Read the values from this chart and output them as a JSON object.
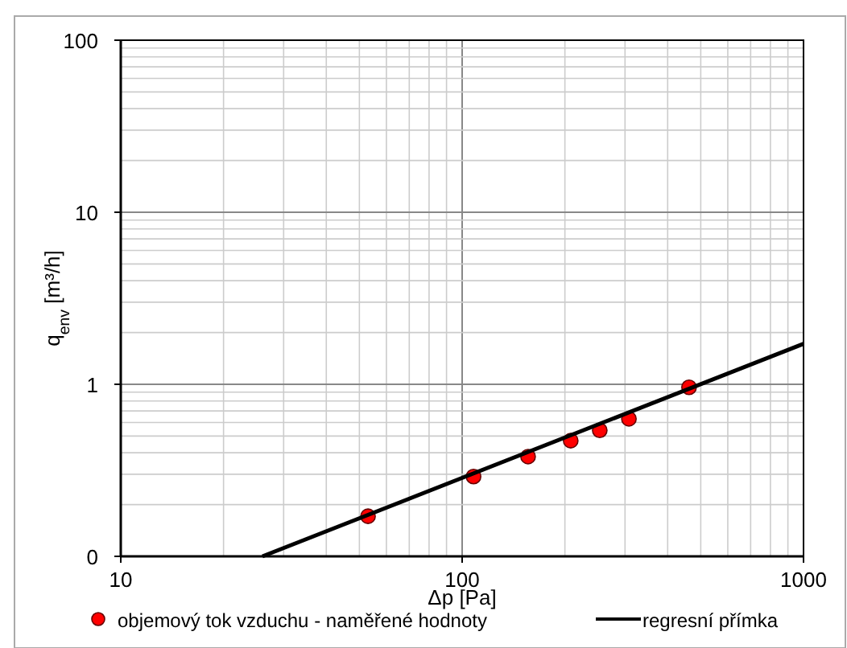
{
  "chart_data": {
    "type": "scatter",
    "xlabel": "Δp [Pa]",
    "ylabel": "q$_{env}$ [m³/h]",
    "log": "xy",
    "grid": true,
    "legend": "bottom",
    "xlim": [
      10,
      1000
    ],
    "xticks": [
      10,
      100,
      1000
    ],
    "ylim": [
      0.1,
      100
    ],
    "yticks": [
      {
        "value": 0.1,
        "label": "0"
      },
      1,
      10,
      100
    ],
    "series": [
      {
        "name": "objemový tok vzduchu - naměřené hodnoty",
        "marker": "circle",
        "color": "#ff0000",
        "x": [
          53,
          108,
          156,
          208,
          253,
          308,
          462
        ],
        "values": [
          0.171,
          0.291,
          0.38,
          0.47,
          0.54,
          0.63,
          0.96
        ]
      },
      {
        "name": "regresní přímka",
        "type": "line",
        "marker": "none",
        "line_style": "solid",
        "color": "#000000",
        "x": [
          26,
          1000
        ],
        "values": [
          0.1,
          1.72
        ]
      }
    ]
  }
}
